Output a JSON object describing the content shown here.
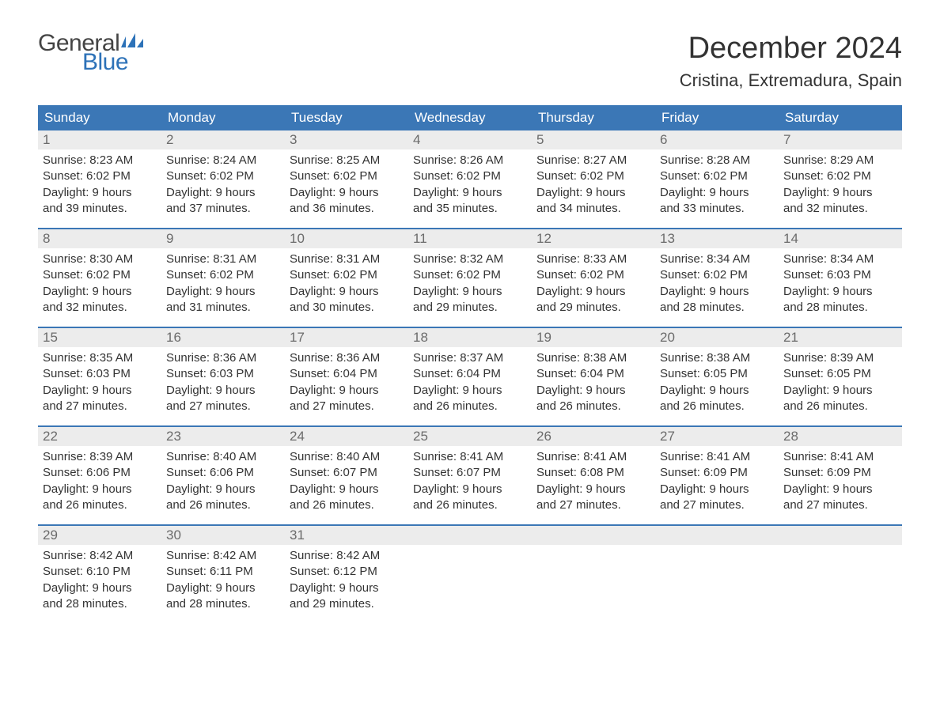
{
  "logo": {
    "word1": "General",
    "word2": "Blue",
    "word1_color": "#444444",
    "word2_color": "#2d72b8",
    "flag_color": "#2d72b8"
  },
  "title": "December 2024",
  "location": "Cristina, Extremadura, Spain",
  "colors": {
    "header_bg": "#3b77b6",
    "header_text": "#ffffff",
    "daynum_bg": "#ececec",
    "daynum_text": "#6b6b6b",
    "body_text": "#333333",
    "week_border": "#3b77b6",
    "page_bg": "#ffffff"
  },
  "fonts": {
    "title_size_pt": 29,
    "location_size_pt": 17,
    "weekday_size_pt": 13,
    "daynum_size_pt": 13,
    "body_size_pt": 11
  },
  "weekdays": [
    "Sunday",
    "Monday",
    "Tuesday",
    "Wednesday",
    "Thursday",
    "Friday",
    "Saturday"
  ],
  "weeks": [
    [
      {
        "n": "1",
        "sunrise": "8:23 AM",
        "sunset": "6:02 PM",
        "dl1": "9 hours",
        "dl2": "and 39 minutes."
      },
      {
        "n": "2",
        "sunrise": "8:24 AM",
        "sunset": "6:02 PM",
        "dl1": "9 hours",
        "dl2": "and 37 minutes."
      },
      {
        "n": "3",
        "sunrise": "8:25 AM",
        "sunset": "6:02 PM",
        "dl1": "9 hours",
        "dl2": "and 36 minutes."
      },
      {
        "n": "4",
        "sunrise": "8:26 AM",
        "sunset": "6:02 PM",
        "dl1": "9 hours",
        "dl2": "and 35 minutes."
      },
      {
        "n": "5",
        "sunrise": "8:27 AM",
        "sunset": "6:02 PM",
        "dl1": "9 hours",
        "dl2": "and 34 minutes."
      },
      {
        "n": "6",
        "sunrise": "8:28 AM",
        "sunset": "6:02 PM",
        "dl1": "9 hours",
        "dl2": "and 33 minutes."
      },
      {
        "n": "7",
        "sunrise": "8:29 AM",
        "sunset": "6:02 PM",
        "dl1": "9 hours",
        "dl2": "and 32 minutes."
      }
    ],
    [
      {
        "n": "8",
        "sunrise": "8:30 AM",
        "sunset": "6:02 PM",
        "dl1": "9 hours",
        "dl2": "and 32 minutes."
      },
      {
        "n": "9",
        "sunrise": "8:31 AM",
        "sunset": "6:02 PM",
        "dl1": "9 hours",
        "dl2": "and 31 minutes."
      },
      {
        "n": "10",
        "sunrise": "8:31 AM",
        "sunset": "6:02 PM",
        "dl1": "9 hours",
        "dl2": "and 30 minutes."
      },
      {
        "n": "11",
        "sunrise": "8:32 AM",
        "sunset": "6:02 PM",
        "dl1": "9 hours",
        "dl2": "and 29 minutes."
      },
      {
        "n": "12",
        "sunrise": "8:33 AM",
        "sunset": "6:02 PM",
        "dl1": "9 hours",
        "dl2": "and 29 minutes."
      },
      {
        "n": "13",
        "sunrise": "8:34 AM",
        "sunset": "6:02 PM",
        "dl1": "9 hours",
        "dl2": "and 28 minutes."
      },
      {
        "n": "14",
        "sunrise": "8:34 AM",
        "sunset": "6:03 PM",
        "dl1": "9 hours",
        "dl2": "and 28 minutes."
      }
    ],
    [
      {
        "n": "15",
        "sunrise": "8:35 AM",
        "sunset": "6:03 PM",
        "dl1": "9 hours",
        "dl2": "and 27 minutes."
      },
      {
        "n": "16",
        "sunrise": "8:36 AM",
        "sunset": "6:03 PM",
        "dl1": "9 hours",
        "dl2": "and 27 minutes."
      },
      {
        "n": "17",
        "sunrise": "8:36 AM",
        "sunset": "6:04 PM",
        "dl1": "9 hours",
        "dl2": "and 27 minutes."
      },
      {
        "n": "18",
        "sunrise": "8:37 AM",
        "sunset": "6:04 PM",
        "dl1": "9 hours",
        "dl2": "and 26 minutes."
      },
      {
        "n": "19",
        "sunrise": "8:38 AM",
        "sunset": "6:04 PM",
        "dl1": "9 hours",
        "dl2": "and 26 minutes."
      },
      {
        "n": "20",
        "sunrise": "8:38 AM",
        "sunset": "6:05 PM",
        "dl1": "9 hours",
        "dl2": "and 26 minutes."
      },
      {
        "n": "21",
        "sunrise": "8:39 AM",
        "sunset": "6:05 PM",
        "dl1": "9 hours",
        "dl2": "and 26 minutes."
      }
    ],
    [
      {
        "n": "22",
        "sunrise": "8:39 AM",
        "sunset": "6:06 PM",
        "dl1": "9 hours",
        "dl2": "and 26 minutes."
      },
      {
        "n": "23",
        "sunrise": "8:40 AM",
        "sunset": "6:06 PM",
        "dl1": "9 hours",
        "dl2": "and 26 minutes."
      },
      {
        "n": "24",
        "sunrise": "8:40 AM",
        "sunset": "6:07 PM",
        "dl1": "9 hours",
        "dl2": "and 26 minutes."
      },
      {
        "n": "25",
        "sunrise": "8:41 AM",
        "sunset": "6:07 PM",
        "dl1": "9 hours",
        "dl2": "and 26 minutes."
      },
      {
        "n": "26",
        "sunrise": "8:41 AM",
        "sunset": "6:08 PM",
        "dl1": "9 hours",
        "dl2": "and 27 minutes."
      },
      {
        "n": "27",
        "sunrise": "8:41 AM",
        "sunset": "6:09 PM",
        "dl1": "9 hours",
        "dl2": "and 27 minutes."
      },
      {
        "n": "28",
        "sunrise": "8:41 AM",
        "sunset": "6:09 PM",
        "dl1": "9 hours",
        "dl2": "and 27 minutes."
      }
    ],
    [
      {
        "n": "29",
        "sunrise": "8:42 AM",
        "sunset": "6:10 PM",
        "dl1": "9 hours",
        "dl2": "and 28 minutes."
      },
      {
        "n": "30",
        "sunrise": "8:42 AM",
        "sunset": "6:11 PM",
        "dl1": "9 hours",
        "dl2": "and 28 minutes."
      },
      {
        "n": "31",
        "sunrise": "8:42 AM",
        "sunset": "6:12 PM",
        "dl1": "9 hours",
        "dl2": "and 29 minutes."
      },
      {
        "empty": true
      },
      {
        "empty": true
      },
      {
        "empty": true
      },
      {
        "empty": true
      }
    ]
  ],
  "labels": {
    "sunrise": "Sunrise:",
    "sunset": "Sunset:",
    "daylight": "Daylight:"
  }
}
